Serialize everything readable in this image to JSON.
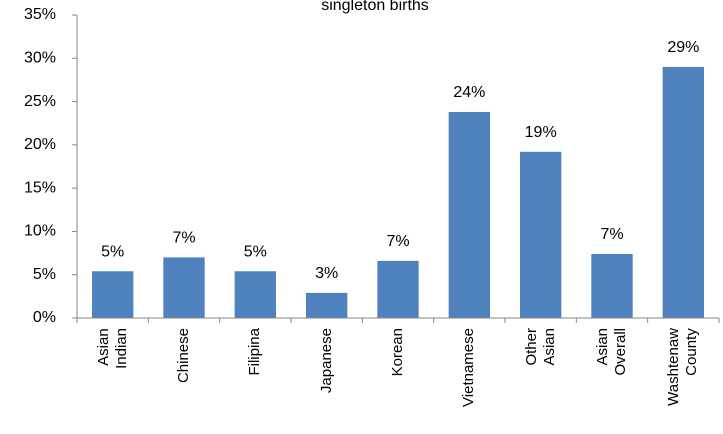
{
  "chart_data": {
    "type": "bar",
    "title": "singleton births",
    "categories": [
      "Asian Indian",
      "Chinese",
      "Filipina",
      "Japanese",
      "Korean",
      "Vietnamese",
      "Other Asian",
      "Asian Overall",
      "Washtenaw County"
    ],
    "values": [
      5.4,
      7.0,
      5.4,
      2.9,
      6.6,
      23.8,
      19.2,
      7.4,
      29.0
    ],
    "value_labels": [
      "5%",
      "7%",
      "5%",
      "3%",
      "7%",
      "24%",
      "19%",
      "7%",
      "29%"
    ],
    "color": "#4f81bd",
    "ylim": [
      0,
      35
    ],
    "yticks": [
      {
        "value": 0,
        "label": "0%"
      },
      {
        "value": 5,
        "label": "5%"
      },
      {
        "value": 10,
        "label": "10%"
      },
      {
        "value": 15,
        "label": "15%"
      },
      {
        "value": 20,
        "label": "20%"
      },
      {
        "value": 25,
        "label": "25%"
      },
      {
        "value": 30,
        "label": "30%"
      },
      {
        "value": 35,
        "label": "35%"
      }
    ],
    "grid": false
  }
}
